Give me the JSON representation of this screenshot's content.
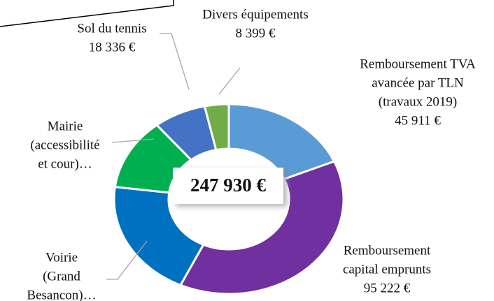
{
  "chart_data": {
    "type": "donut",
    "total_label": "247 930 €",
    "categories": [
      [
        "Remboursement TVA",
        "avancée par TLN",
        "(travaux 2019)"
      ],
      [
        "Remboursement",
        "capital emprunts"
      ],
      [
        "Voirie",
        "(Grand",
        "Besancon)…"
      ],
      [
        "Mairie",
        "(accessibilité",
        "et cour)…"
      ],
      [
        "Sol du tennis"
      ],
      [
        "Divers équipements"
      ]
    ],
    "values": [
      45911,
      95222,
      49862,
      30200,
      18336,
      8399
    ],
    "value_labels": [
      "45 911 €",
      "95 222 €",
      null,
      null,
      "18 336 €",
      "8 399 €"
    ],
    "colors": [
      "#5b9bd5",
      "#7030a0",
      "#0070c0",
      "#00b050",
      "#4472c4",
      "#70ad47"
    ]
  }
}
